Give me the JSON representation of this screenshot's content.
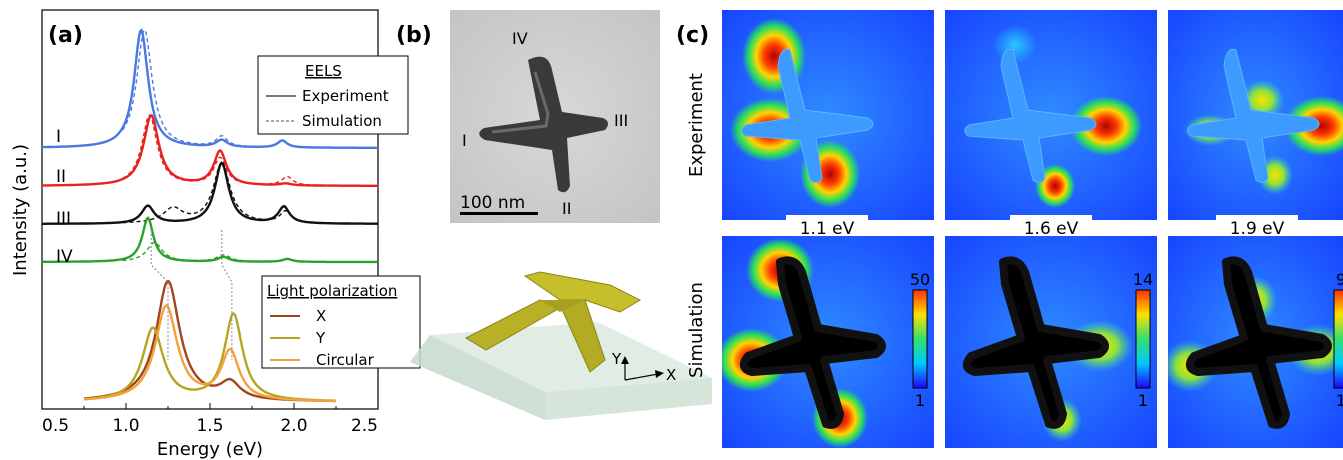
{
  "panel_labels": {
    "a": "(a)",
    "b": "(b)",
    "c": "(c)"
  },
  "chart_data": {
    "type": "line",
    "xlabel": "Energy (eV)",
    "ylabel": "Intensity (a.u.)",
    "xlim": [
      0.5,
      2.5
    ],
    "x_ticks": [
      "0.5",
      "1.0",
      "1.5",
      "2.0",
      "2.5"
    ],
    "grid": false,
    "series": [
      {
        "name": "I",
        "style": "Experiment",
        "color": "#4a78e0",
        "peaks": [
          [
            1.09,
            1.0,
            0.1
          ],
          [
            1.57,
            0.06,
            0.08
          ],
          [
            1.93,
            0.06,
            0.07
          ]
        ],
        "x_range": [
          0.5,
          2.5
        ]
      },
      {
        "name": "I",
        "style": "Simulation",
        "color": "#4a78e0",
        "peaks": [
          [
            1.11,
            1.0,
            0.11
          ],
          [
            1.57,
            0.09,
            0.08
          ],
          [
            1.93,
            0.06,
            0.07
          ]
        ],
        "x_range": [
          0.98,
          2.3
        ]
      },
      {
        "name": "II",
        "style": "Experiment",
        "color": "#e8231f",
        "peaks": [
          [
            1.15,
            0.72,
            0.11
          ],
          [
            1.56,
            0.35,
            0.09
          ],
          [
            1.95,
            0.02,
            0.08
          ]
        ],
        "x_range": [
          0.5,
          2.5
        ]
      },
      {
        "name": "II",
        "style": "Simulation",
        "color": "#e8231f",
        "peaks": [
          [
            1.14,
            0.72,
            0.11
          ],
          [
            1.56,
            0.28,
            0.09
          ],
          [
            1.96,
            0.09,
            0.08
          ]
        ],
        "x_range": [
          0.98,
          2.3
        ]
      },
      {
        "name": "III",
        "style": "Experiment",
        "color": "#111111",
        "peaks": [
          [
            1.13,
            0.18,
            0.09
          ],
          [
            1.57,
            0.62,
            0.1
          ],
          [
            1.94,
            0.17,
            0.08
          ]
        ],
        "x_range": [
          0.5,
          2.5
        ]
      },
      {
        "name": "III",
        "style": "Simulation",
        "color": "#111111",
        "peaks": [
          [
            1.28,
            0.15,
            0.14
          ],
          [
            1.57,
            0.62,
            0.12
          ],
          [
            1.95,
            0.12,
            0.08
          ]
        ],
        "x_range": [
          0.98,
          2.3
        ]
      },
      {
        "name": "IV",
        "style": "Experiment",
        "color": "#2ca02c",
        "peaks": [
          [
            1.13,
            0.45,
            0.08
          ],
          [
            1.58,
            0.05,
            0.08
          ],
          [
            1.96,
            0.03,
            0.07
          ]
        ],
        "x_range": [
          0.5,
          2.5
        ]
      },
      {
        "name": "IV",
        "style": "Simulation",
        "color": "#2ca02c",
        "peaks": [
          [
            1.17,
            0.2,
            0.11
          ],
          [
            1.58,
            0.07,
            0.1
          ],
          [
            1.96,
            0.03,
            0.07
          ]
        ],
        "x_range": [
          0.98,
          2.3
        ]
      },
      {
        "name": "X",
        "style": "Light polarization",
        "color": "#a0461f",
        "peaks": [
          [
            1.25,
            0.86,
            0.17
          ],
          [
            1.62,
            0.12,
            0.14
          ]
        ],
        "x_range": [
          0.75,
          2.25
        ]
      },
      {
        "name": "Y",
        "style": "Light polarization",
        "color": "#b5a521",
        "peaks": [
          [
            1.16,
            0.52,
            0.15
          ],
          [
            1.64,
            0.62,
            0.13
          ]
        ],
        "x_range": [
          0.75,
          2.25
        ]
      },
      {
        "name": "Circular",
        "style": "Light polarization",
        "color": "#f1a33a",
        "peaks": [
          [
            1.24,
            0.68,
            0.16
          ],
          [
            1.62,
            0.35,
            0.13
          ]
        ],
        "x_range": [
          0.75,
          2.25
        ]
      }
    ],
    "series_labels": [
      "I",
      "II",
      "III",
      "IV"
    ],
    "legend_eels": {
      "title": "EELS",
      "entries": [
        "Experiment",
        "Simulation"
      ]
    },
    "legend_light": {
      "title": "Light polarization",
      "entries": [
        "X",
        "Y",
        "Circular"
      ]
    },
    "mode_energies_eV": [
      1.15,
      1.57,
      1.25,
      1.63
    ]
  },
  "tem": {
    "arm_labels": [
      "IV",
      "III",
      "I",
      "II"
    ],
    "scale_bar": "100 nm"
  },
  "model": {
    "axis_labels": [
      "Y",
      "X"
    ]
  },
  "maps": {
    "row_labels": [
      "Experiment",
      "Simulation"
    ],
    "energies": [
      "1.1 eV",
      "1.6 eV",
      "1.9 eV"
    ],
    "colorbars": [
      {
        "max": "50",
        "min": "1"
      },
      {
        "max": "14",
        "min": "1"
      },
      {
        "max": "9",
        "min": "1"
      }
    ]
  },
  "colors": {
    "map_background": "#1a4fff",
    "tem_background": "#cfcfcf",
    "substrate": "#dbe9df"
  }
}
